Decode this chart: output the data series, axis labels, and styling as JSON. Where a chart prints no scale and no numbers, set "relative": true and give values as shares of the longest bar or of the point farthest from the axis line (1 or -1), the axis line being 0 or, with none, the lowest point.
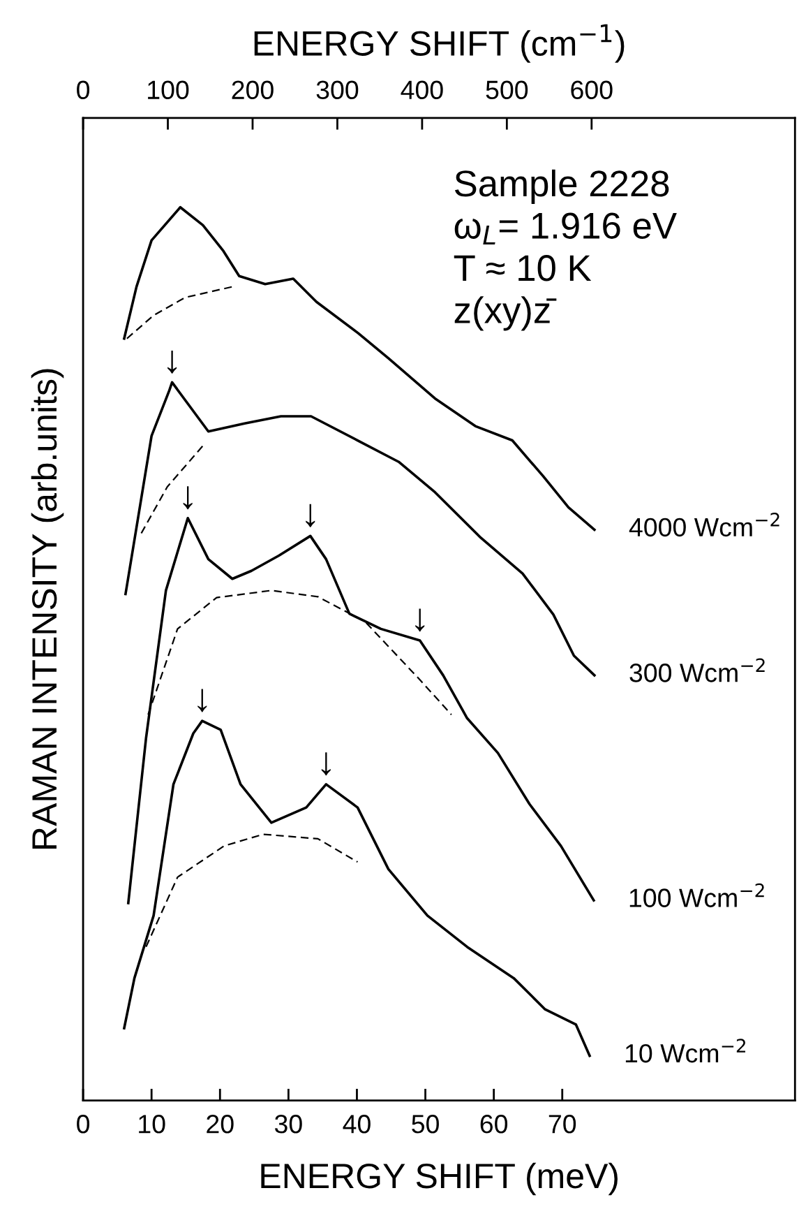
{
  "chart_data": {
    "type": "line",
    "relative": true,
    "xlabel": "ENERGY SHIFT (meV)",
    "x2label": "ENERGY SHIFT (cm$^{−1}$)",
    "ylabel": "RAMAN INTENSITY (arb.units)",
    "xlim": [
      0,
      104
    ],
    "xticks": [
      0,
      10,
      20,
      30,
      40,
      50,
      60,
      70
    ],
    "x2lim": [
      0,
      840
    ],
    "x2ticks": [
      0,
      100,
      200,
      300,
      400,
      500,
      600
    ],
    "tick_labels": "x",
    "grid": false,
    "legend": false,
    "marker": "none",
    "series": [
      {
        "name": "4000 Wcm$^{−2}$",
        "color": "#000000",
        "line_style": "solid",
        "x": [
          6.0,
          7.8,
          10.0,
          14.2,
          17.5,
          20.5,
          22.8,
          26.6,
          30.7,
          34.1,
          40.2,
          44.6,
          51.4,
          57.3,
          62.7,
          67.2,
          70.9,
          74.7
        ],
        "values": [
          0.853,
          0.911,
          0.963,
          1.0,
          0.98,
          0.951,
          0.923,
          0.914,
          0.92,
          0.894,
          0.859,
          0.831,
          0.786,
          0.755,
          0.739,
          0.699,
          0.664,
          0.639
        ]
      },
      {
        "color": "#000000",
        "line_style": "dashed",
        "x": [
          6.4,
          10.3,
          14.9,
          21.8
        ],
        "values": [
          0.853,
          0.879,
          0.899,
          0.911
        ]
      },
      {
        "name": "300 Wcm$^{−2}$",
        "color": "#000000",
        "line_style": "solid",
        "x": [
          6.2,
          10.0,
          12.6,
          13.0,
          18.3,
          23.6,
          28.9,
          33.3,
          40.1,
          46.1,
          51.4,
          58.1,
          64.2,
          68.7,
          71.7,
          74.7
        ],
        "values": [
          0.567,
          0.744,
          0.795,
          0.804,
          0.749,
          0.758,
          0.766,
          0.766,
          0.739,
          0.715,
          0.681,
          0.63,
          0.59,
          0.544,
          0.498,
          0.476
        ]
      },
      {
        "color": "#000000",
        "line_style": "dashed",
        "x": [
          8.5,
          12.3,
          17.5
        ],
        "values": [
          0.635,
          0.687,
          0.733
        ]
      },
      {
        "name": "100 Wcm$^{−2}$",
        "color": "#000000",
        "line_style": "solid",
        "x": [
          6.6,
          9.2,
          12.1,
          15.3,
          18.3,
          21.8,
          24.6,
          28.6,
          33.2,
          35.5,
          38.9,
          43.5,
          49.2,
          52.6,
          56.1,
          60.6,
          65.2,
          69.8,
          74.6
        ],
        "values": [
          0.221,
          0.406,
          0.571,
          0.652,
          0.606,
          0.584,
          0.593,
          0.61,
          0.632,
          0.606,
          0.545,
          0.528,
          0.515,
          0.476,
          0.428,
          0.389,
          0.332,
          0.285,
          0.224
        ]
      },
      {
        "color": "#000000",
        "line_style": "dashed",
        "x": [
          9.5,
          13.8,
          19.5,
          27.5,
          34.3,
          41.2,
          49.2,
          53.8
        ],
        "values": [
          0.432,
          0.528,
          0.563,
          0.571,
          0.564,
          0.536,
          0.471,
          0.432
        ]
      },
      {
        "name": "10 Wcm$^{−2}$",
        "color": "#000000",
        "line_style": "solid",
        "x": [
          6.0,
          7.5,
          10.3,
          13.2,
          16.1,
          17.4,
          20.1,
          23.0,
          27.5,
          32.6,
          35.5,
          40.1,
          44.6,
          50.3,
          56.1,
          62.9,
          67.5,
          72.0,
          74.0
        ],
        "values": [
          0.081,
          0.137,
          0.207,
          0.354,
          0.411,
          0.425,
          0.415,
          0.354,
          0.311,
          0.328,
          0.354,
          0.328,
          0.259,
          0.207,
          0.172,
          0.137,
          0.102,
          0.085,
          0.05
        ]
      },
      {
        "color": "#000000",
        "line_style": "dashed",
        "x": [
          9.2,
          13.8,
          20.6,
          26.3,
          34.3,
          40.1
        ],
        "values": [
          0.172,
          0.25,
          0.285,
          0.298,
          0.293,
          0.267
        ]
      }
    ],
    "annotations": [
      "Sample 2228",
      "ω$_{L}$= 1.916 eV",
      "T ≈ 10 K",
      "z(xy)z̄",
      {
        "text": "↓",
        "x": 13.0,
        "y": 0.804
      },
      {
        "text": "↓",
        "x": 15.3,
        "y": 0.652
      },
      {
        "text": "↓",
        "x": 33.2,
        "y": 0.632
      },
      {
        "text": "↓",
        "x": 49.2,
        "y": 0.515
      },
      {
        "text": "↓",
        "x": 17.4,
        "y": 0.425
      },
      {
        "text": "↓",
        "x": 35.5,
        "y": 0.354
      }
    ]
  }
}
